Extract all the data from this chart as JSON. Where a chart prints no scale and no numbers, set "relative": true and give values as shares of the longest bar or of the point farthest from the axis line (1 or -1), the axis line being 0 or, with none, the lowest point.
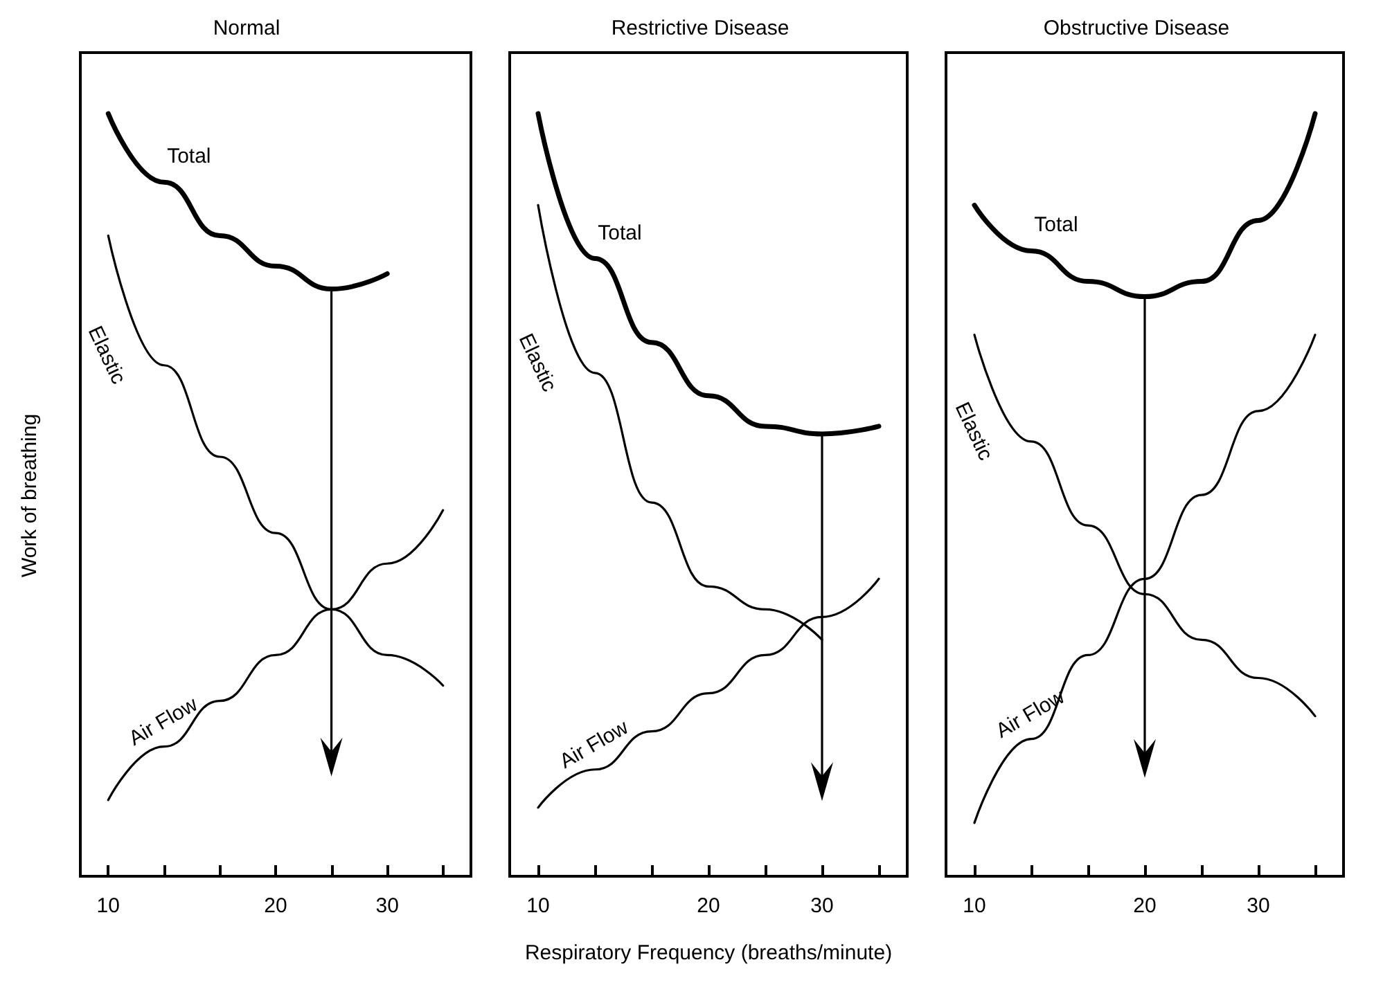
{
  "chart_data": [
    {
      "type": "line",
      "title": "Normal",
      "ylabel": "Work of breathing",
      "relative": true,
      "categories": [
        "10",
        null,
        null,
        "20",
        null,
        "30",
        null
      ],
      "series": [
        {
          "name": "Total",
          "color": "#000000",
          "values": [
            1,
            0.91,
            0.84,
            0.8,
            0.77,
            0.79,
            null
          ]
        },
        {
          "name": "Elastic",
          "color": "#000000",
          "values": [
            0.84,
            0.67,
            0.55,
            0.45,
            0.35,
            0.29,
            0.25
          ]
        },
        {
          "name": "Air Flow",
          "color": "#000000",
          "values": [
            0.1,
            0.17,
            0.23,
            0.29,
            0.35,
            0.41,
            0.48
          ]
        }
      ]
    },
    {
      "type": "line",
      "title": "Restrictive Disease",
      "xlabel": "Respiratory Frequency (breaths/minute)",
      "relative": true,
      "categories": [
        "10",
        null,
        null,
        "20",
        null,
        "30",
        null
      ],
      "series": [
        {
          "name": "Total",
          "color": "#000000",
          "values": [
            1,
            0.81,
            0.7,
            0.63,
            0.59,
            0.58,
            0.59
          ]
        },
        {
          "name": "Elastic",
          "color": "#000000",
          "values": [
            0.88,
            0.66,
            0.49,
            0.38,
            0.35,
            0.31,
            null
          ]
        },
        {
          "name": "Air Flow",
          "color": "#000000",
          "values": [
            0.09,
            0.14,
            0.19,
            0.24,
            0.29,
            0.34,
            0.39
          ]
        }
      ]
    },
    {
      "type": "line",
      "title": "Obstructive Disease",
      "relative": true,
      "categories": [
        "10",
        null,
        null,
        "20",
        null,
        "30",
        null
      ],
      "series": [
        {
          "name": "Total",
          "color": "#000000",
          "values": [
            0.88,
            0.82,
            0.78,
            0.76,
            0.78,
            0.86,
            1
          ]
        },
        {
          "name": "Elastic",
          "color": "#000000",
          "values": [
            0.71,
            0.57,
            0.46,
            0.37,
            0.31,
            0.26,
            0.21
          ]
        },
        {
          "name": "Air Flow",
          "color": "#000000",
          "values": [
            0.07,
            0.18,
            0.29,
            0.39,
            0.5,
            0.61,
            0.71
          ]
        }
      ]
    }
  ]
}
